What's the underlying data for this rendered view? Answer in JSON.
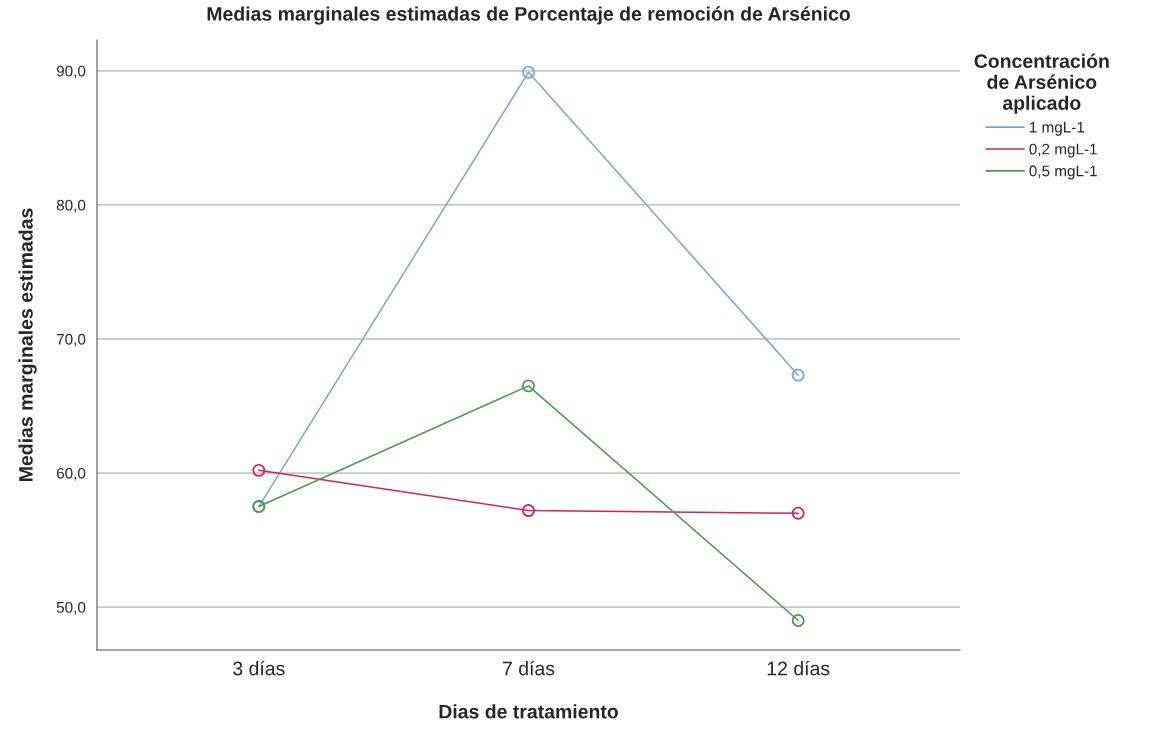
{
  "chart_data": {
    "type": "line",
    "title": "Medias marginales estimadas de Porcentaje de remoción de Arsénico",
    "xlabel": "Dias de tratamiento",
    "ylabel": "Medias marginales estimadas",
    "legend_title": "Concentración\nde Arsénico\naplicado",
    "categories": [
      "3 días",
      "7 días",
      "12 días"
    ],
    "series": [
      {
        "name": "1 mgL-1",
        "color": "#7ba6d8",
        "values": [
          57.5,
          89.9,
          67.3
        ]
      },
      {
        "name": "0,2 mgL-1",
        "color": "#c8285a",
        "values": [
          60.2,
          57.2,
          57.0
        ]
      },
      {
        "name": "0,5 mgL-1",
        "color": "#4b9a4b",
        "values": [
          57.5,
          66.5,
          49.0
        ]
      }
    ],
    "ylim": [
      46.8,
      92.3
    ],
    "yticks": [
      {
        "value": 50,
        "label": "50,0"
      },
      {
        "value": 60,
        "label": "60,0"
      },
      {
        "value": 70,
        "label": "70,0"
      },
      {
        "value": 80,
        "label": "80,0"
      },
      {
        "value": 90,
        "label": "90,0"
      }
    ],
    "grid": "y",
    "legend": "right",
    "marker": "circle",
    "line_style": "solid"
  }
}
